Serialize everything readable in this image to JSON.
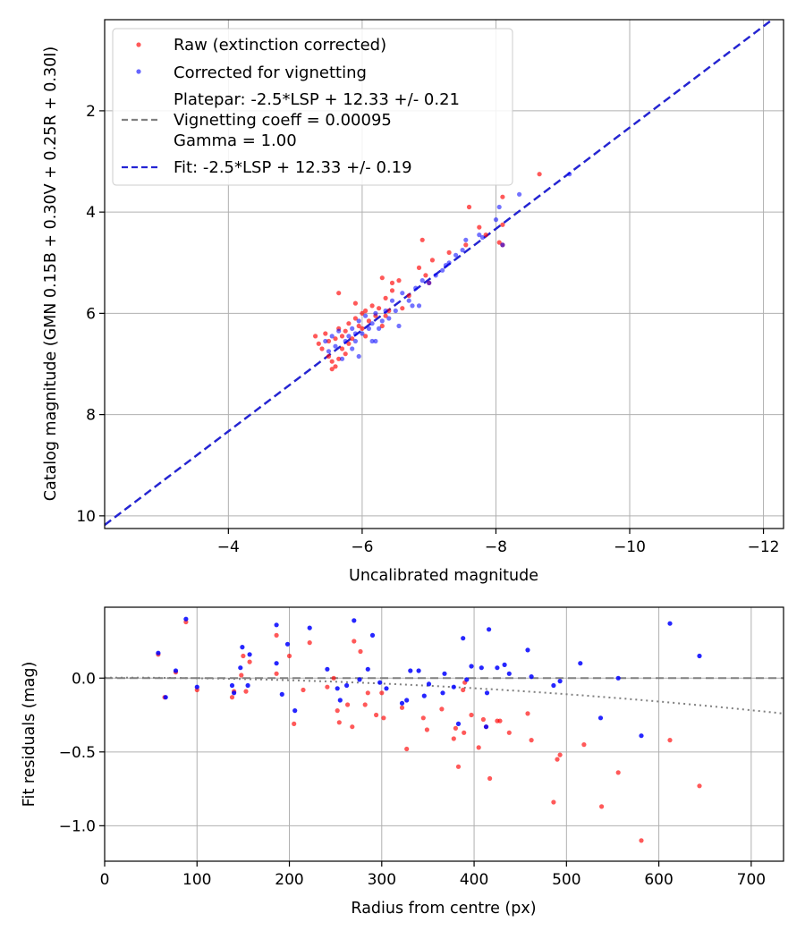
{
  "colors": {
    "raw": "#ff0000",
    "corrected": "#0000ff",
    "platepar": "#808080",
    "fit": "#2424d4"
  },
  "chart_data": [
    {
      "type": "scatter",
      "title": "",
      "xlabel": "Uncalibrated magnitude",
      "ylabel": "Catalog magnitude (GMN 0.15B + 0.30V + 0.25R + 0.30I)",
      "xlim": [
        -2.15,
        -12.3
      ],
      "ylim": [
        10.25,
        0.2
      ],
      "x_ticks": [
        -4,
        -6,
        -8,
        -10,
        -12
      ],
      "x_tick_labels": [
        "−4",
        "−6",
        "−8",
        "−10",
        "−12"
      ],
      "y_ticks": [
        2,
        4,
        6,
        8,
        10
      ],
      "y_tick_labels": [
        "2",
        "4",
        "6",
        "8",
        "10"
      ],
      "grid": true,
      "legend": {
        "position": "top-left",
        "entries": [
          {
            "label": "Raw (extinction corrected)",
            "marker": "dot",
            "color": "raw"
          },
          {
            "label": "Corrected for vignetting",
            "marker": "dot",
            "color": "corrected"
          },
          {
            "label_lines": [
              "Platepar: -2.5*LSP + 12.33 +/- 0.21",
              "Vignetting coeff = 0.00095",
              "Gamma = 1.00"
            ],
            "marker": "dash",
            "color": "platepar"
          },
          {
            "label": "Fit: -2.5*LSP + 12.33 +/- 0.19",
            "marker": "dash",
            "color": "fit"
          }
        ]
      },
      "lines": [
        {
          "name": "Platepar",
          "x": [
            -2.0,
            -12.5
          ],
          "y": [
            10.33,
            -0.17
          ],
          "style": "dashed",
          "color": "platepar"
        },
        {
          "name": "Fit",
          "x": [
            -2.0,
            -12.5
          ],
          "y": [
            10.33,
            -0.17
          ],
          "style": "dashed",
          "color": "fit"
        }
      ],
      "series": [
        {
          "name": "Raw (extinction corrected)",
          "color": "raw",
          "points": [
            [
              -5.3,
              6.45
            ],
            [
              -5.35,
              6.6
            ],
            [
              -5.4,
              6.7
            ],
            [
              -5.45,
              6.4
            ],
            [
              -5.5,
              6.55
            ],
            [
              -5.5,
              6.85
            ],
            [
              -5.55,
              7.1
            ],
            [
              -5.6,
              6.5
            ],
            [
              -5.6,
              7.05
            ],
            [
              -5.65,
              6.3
            ],
            [
              -5.65,
              6.9
            ],
            [
              -5.7,
              6.45
            ],
            [
              -5.7,
              6.7
            ],
            [
              -5.75,
              6.35
            ],
            [
              -5.8,
              6.6
            ],
            [
              -5.8,
              6.2
            ],
            [
              -5.85,
              6.5
            ],
            [
              -5.9,
              6.1
            ],
            [
              -5.95,
              6.25
            ],
            [
              -6.0,
              6.0
            ],
            [
              -6.0,
              6.3
            ],
            [
              -6.05,
              5.95
            ],
            [
              -6.1,
              6.15
            ],
            [
              -6.15,
              5.85
            ],
            [
              -6.2,
              6.05
            ],
            [
              -6.25,
              5.9
            ],
            [
              -6.3,
              6.25
            ],
            [
              -6.35,
              5.7
            ],
            [
              -6.35,
              6.05
            ],
            [
              -6.4,
              5.95
            ],
            [
              -6.45,
              5.55
            ],
            [
              -6.55,
              5.35
            ],
            [
              -6.6,
              5.9
            ],
            [
              -6.7,
              5.65
            ],
            [
              -6.85,
              5.1
            ],
            [
              -6.9,
              4.55
            ],
            [
              -6.95,
              5.25
            ],
            [
              -7.0,
              5.4
            ],
            [
              -7.05,
              4.95
            ],
            [
              -7.3,
              4.8
            ],
            [
              -7.55,
              4.65
            ],
            [
              -7.6,
              3.9
            ],
            [
              -7.75,
              4.3
            ],
            [
              -7.85,
              4.45
            ],
            [
              -8.05,
              4.6
            ],
            [
              -8.1,
              4.25
            ],
            [
              -8.1,
              3.7
            ],
            [
              -8.1,
              4.65
            ],
            [
              -8.65,
              3.25
            ],
            [
              -5.65,
              5.6
            ],
            [
              -5.9,
              5.8
            ],
            [
              -6.3,
              5.3
            ],
            [
              -6.45,
              5.4
            ],
            [
              -5.55,
              6.95
            ],
            [
              -5.75,
              6.8
            ],
            [
              -6.05,
              6.45
            ]
          ]
        },
        {
          "name": "Corrected for vignetting",
          "color": "corrected",
          "points": [
            [
              -5.45,
              6.55
            ],
            [
              -5.5,
              6.75
            ],
            [
              -5.55,
              6.45
            ],
            [
              -5.6,
              6.65
            ],
            [
              -5.65,
              6.35
            ],
            [
              -5.7,
              6.9
            ],
            [
              -5.75,
              6.55
            ],
            [
              -5.8,
              6.45
            ],
            [
              -5.85,
              6.7
            ],
            [
              -5.85,
              6.3
            ],
            [
              -5.9,
              6.55
            ],
            [
              -5.95,
              6.85
            ],
            [
              -5.95,
              6.15
            ],
            [
              -6.0,
              6.4
            ],
            [
              -6.05,
              6.05
            ],
            [
              -6.1,
              6.3
            ],
            [
              -6.15,
              6.55
            ],
            [
              -6.2,
              6.0
            ],
            [
              -6.25,
              6.3
            ],
            [
              -6.3,
              6.15
            ],
            [
              -6.35,
              5.95
            ],
            [
              -6.4,
              6.1
            ],
            [
              -6.45,
              5.75
            ],
            [
              -6.5,
              5.95
            ],
            [
              -6.55,
              6.25
            ],
            [
              -6.6,
              5.6
            ],
            [
              -6.7,
              5.75
            ],
            [
              -6.75,
              5.85
            ],
            [
              -6.8,
              5.5
            ],
            [
              -6.85,
              5.85
            ],
            [
              -6.9,
              5.35
            ],
            [
              -7.0,
              5.4
            ],
            [
              -7.1,
              5.25
            ],
            [
              -7.2,
              5.15
            ],
            [
              -7.3,
              5.0
            ],
            [
              -7.4,
              4.85
            ],
            [
              -7.5,
              4.75
            ],
            [
              -7.55,
              4.55
            ],
            [
              -7.75,
              4.45
            ],
            [
              -7.8,
              4.5
            ],
            [
              -8.0,
              4.15
            ],
            [
              -8.05,
              3.9
            ],
            [
              -8.1,
              4.65
            ],
            [
              -8.35,
              3.65
            ],
            [
              -9.1,
              3.25
            ],
            [
              -6.2,
              6.55
            ],
            [
              -5.9,
              6.4
            ],
            [
              -6.15,
              6.2
            ],
            [
              -7.25,
              5.05
            ]
          ]
        }
      ]
    },
    {
      "type": "scatter",
      "title": "",
      "xlabel": "Radius from centre (px)",
      "ylabel": "Fit residuals (mag)",
      "xlim": [
        0,
        735
      ],
      "ylim": [
        -1.24,
        0.48
      ],
      "x_ticks": [
        0,
        100,
        200,
        300,
        400,
        500,
        600,
        700
      ],
      "x_tick_labels": [
        "0",
        "100",
        "200",
        "300",
        "400",
        "500",
        "600",
        "700"
      ],
      "y_ticks": [
        0.0,
        -0.5,
        -1.0
      ],
      "y_tick_labels": [
        "0.0",
        "−0.5",
        "−1.0"
      ],
      "grid": true,
      "lines": [
        {
          "name": "zero",
          "style": "dashed",
          "color": "platepar",
          "y_const": 0.0
        },
        {
          "name": "vignetting model",
          "style": "dotted",
          "color": "platepar",
          "coeff": 0.00095,
          "zero_radius": 90
        }
      ],
      "series": [
        {
          "name": "Raw (extinction corrected)",
          "color": "raw",
          "points": [
            [
              58,
              0.16
            ],
            [
              65,
              -0.13
            ],
            [
              77,
              0.04
            ],
            [
              88,
              0.38
            ],
            [
              100,
              -0.08
            ],
            [
              138,
              -0.13
            ],
            [
              140,
              -0.09
            ],
            [
              148,
              0.02
            ],
            [
              150,
              0.15
            ],
            [
              153,
              -0.09
            ],
            [
              157,
              0.11
            ],
            [
              186,
              0.29
            ],
            [
              186,
              0.03
            ],
            [
              200,
              0.15
            ],
            [
              205,
              -0.31
            ],
            [
              215,
              -0.08
            ],
            [
              222,
              0.24
            ],
            [
              241,
              -0.06
            ],
            [
              248,
              0.0
            ],
            [
              252,
              -0.22
            ],
            [
              254,
              -0.3
            ],
            [
              263,
              -0.18
            ],
            [
              268,
              -0.33
            ],
            [
              270,
              0.25
            ],
            [
              277,
              0.18
            ],
            [
              282,
              -0.18
            ],
            [
              285,
              -0.1
            ],
            [
              294,
              -0.25
            ],
            [
              302,
              -0.27
            ],
            [
              322,
              -0.2
            ],
            [
              327,
              -0.48
            ],
            [
              345,
              -0.27
            ],
            [
              349,
              -0.35
            ],
            [
              365,
              -0.21
            ],
            [
              378,
              -0.41
            ],
            [
              380,
              -0.34
            ],
            [
              383,
              -0.6
            ],
            [
              389,
              -0.37
            ],
            [
              388,
              -0.08
            ],
            [
              397,
              -0.25
            ],
            [
              405,
              -0.47
            ],
            [
              410,
              -0.28
            ],
            [
              413,
              -0.33
            ],
            [
              417,
              -0.68
            ],
            [
              425,
              -0.29
            ],
            [
              428,
              -0.29
            ],
            [
              438,
              -0.37
            ],
            [
              458,
              -0.24
            ],
            [
              462,
              -0.42
            ],
            [
              486,
              -0.84
            ],
            [
              490,
              -0.55
            ],
            [
              493,
              -0.52
            ],
            [
              519,
              -0.45
            ],
            [
              538,
              -0.87
            ],
            [
              556,
              -0.64
            ],
            [
              581,
              -1.1
            ],
            [
              612,
              -0.42
            ],
            [
              644,
              -0.73
            ],
            [
              390,
              -0.03
            ],
            [
              300,
              -0.1
            ]
          ]
        },
        {
          "name": "Corrected for vignetting",
          "color": "corrected",
          "points": [
            [
              58,
              0.17
            ],
            [
              66,
              -0.13
            ],
            [
              77,
              0.05
            ],
            [
              88,
              0.4
            ],
            [
              100,
              -0.06
            ],
            [
              138,
              -0.05
            ],
            [
              140,
              -0.1
            ],
            [
              147,
              0.07
            ],
            [
              149,
              0.21
            ],
            [
              155,
              -0.05
            ],
            [
              157,
              0.16
            ],
            [
              186,
              0.36
            ],
            [
              186,
              0.1
            ],
            [
              192,
              -0.11
            ],
            [
              198,
              0.23
            ],
            [
              206,
              -0.22
            ],
            [
              222,
              0.34
            ],
            [
              241,
              0.06
            ],
            [
              252,
              -0.07
            ],
            [
              255,
              -0.15
            ],
            [
              262,
              -0.05
            ],
            [
              270,
              0.39
            ],
            [
              276,
              -0.01
            ],
            [
              285,
              0.06
            ],
            [
              290,
              0.29
            ],
            [
              298,
              -0.03
            ],
            [
              305,
              -0.07
            ],
            [
              322,
              -0.17
            ],
            [
              327,
              -0.15
            ],
            [
              331,
              0.05
            ],
            [
              340,
              0.05
            ],
            [
              346,
              -0.12
            ],
            [
              351,
              -0.04
            ],
            [
              366,
              -0.1
            ],
            [
              368,
              0.03
            ],
            [
              378,
              -0.06
            ],
            [
              383,
              -0.31
            ],
            [
              388,
              0.27
            ],
            [
              392,
              -0.01
            ],
            [
              397,
              0.08
            ],
            [
              408,
              0.07
            ],
            [
              414,
              -0.1
            ],
            [
              416,
              0.33
            ],
            [
              425,
              0.07
            ],
            [
              433,
              0.09
            ],
            [
              438,
              0.03
            ],
            [
              458,
              0.19
            ],
            [
              462,
              0.01
            ],
            [
              486,
              -0.05
            ],
            [
              493,
              -0.02
            ],
            [
              515,
              0.1
            ],
            [
              537,
              -0.27
            ],
            [
              556,
              0.0
            ],
            [
              581,
              -0.39
            ],
            [
              612,
              0.37
            ],
            [
              644,
              0.15
            ],
            [
              413,
              -0.33
            ]
          ]
        }
      ]
    }
  ]
}
